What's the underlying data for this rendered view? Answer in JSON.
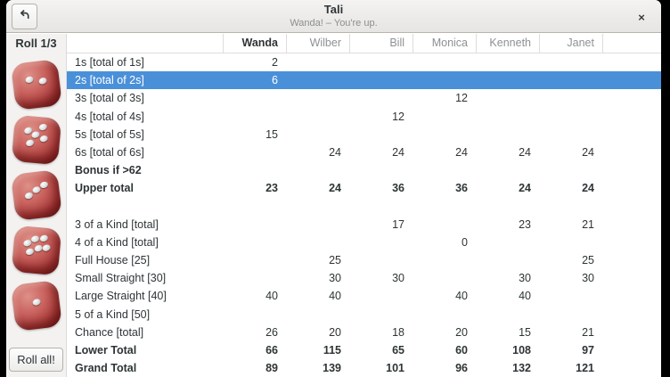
{
  "titlebar": {
    "title": "Tali",
    "subtitle": "Wanda! – You're up.",
    "back_icon": "back-arrow",
    "close_icon": "×"
  },
  "sidebar": {
    "roll_counter": "Roll 1/3",
    "dice_values": [
      2,
      5,
      3,
      6,
      1
    ],
    "roll_button_label": "Roll all!"
  },
  "score_table": {
    "players": [
      {
        "name": "Wanda",
        "current": true
      },
      {
        "name": "Wilber",
        "current": false
      },
      {
        "name": "Bill",
        "current": false
      },
      {
        "name": "Monica",
        "current": false
      },
      {
        "name": "Kenneth",
        "current": false
      },
      {
        "name": "Janet",
        "current": false
      }
    ],
    "rows": [
      {
        "label": "1s [total of 1s]",
        "values": [
          "2",
          "",
          "",
          "",
          "",
          ""
        ],
        "bold": false,
        "selected": false
      },
      {
        "label": "2s [total of 2s]",
        "values": [
          "6",
          "",
          "",
          "",
          "",
          ""
        ],
        "bold": false,
        "selected": true
      },
      {
        "label": "3s [total of 3s]",
        "values": [
          "",
          "",
          "",
          "12",
          "",
          ""
        ],
        "bold": false,
        "selected": false
      },
      {
        "label": "4s [total of 4s]",
        "values": [
          "",
          "",
          "12",
          "",
          "",
          ""
        ],
        "bold": false,
        "selected": false
      },
      {
        "label": "5s [total of 5s]",
        "values": [
          "15",
          "",
          "",
          "",
          "",
          ""
        ],
        "bold": false,
        "selected": false
      },
      {
        "label": "6s [total of 6s]",
        "values": [
          "",
          "24",
          "24",
          "24",
          "24",
          "24"
        ],
        "bold": false,
        "selected": false
      },
      {
        "label": "Bonus if >62",
        "values": [
          "",
          "",
          "",
          "",
          "",
          ""
        ],
        "bold": true,
        "selected": false
      },
      {
        "label": "Upper total",
        "values": [
          "23",
          "24",
          "36",
          "36",
          "24",
          "24"
        ],
        "bold": true,
        "selected": false
      },
      {
        "label": "",
        "values": [
          "",
          "",
          "",
          "",
          "",
          ""
        ],
        "bold": false,
        "selected": false
      },
      {
        "label": "3 of a Kind [total]",
        "values": [
          "",
          "",
          "17",
          "",
          "23",
          "21"
        ],
        "bold": false,
        "selected": false
      },
      {
        "label": "4 of a Kind [total]",
        "values": [
          "",
          "",
          "",
          "0",
          "",
          ""
        ],
        "bold": false,
        "selected": false
      },
      {
        "label": "Full House [25]",
        "values": [
          "",
          "25",
          "",
          "",
          "",
          "25"
        ],
        "bold": false,
        "selected": false
      },
      {
        "label": "Small Straight [30]",
        "values": [
          "",
          "30",
          "30",
          "",
          "30",
          "30"
        ],
        "bold": false,
        "selected": false
      },
      {
        "label": "Large Straight [40]",
        "values": [
          "40",
          "40",
          "",
          "40",
          "40",
          ""
        ],
        "bold": false,
        "selected": false
      },
      {
        "label": "5 of a Kind [50]",
        "values": [
          "",
          "",
          "",
          "",
          "",
          ""
        ],
        "bold": false,
        "selected": false
      },
      {
        "label": "Chance [total]",
        "values": [
          "26",
          "20",
          "18",
          "20",
          "15",
          "21"
        ],
        "bold": false,
        "selected": false
      },
      {
        "label": "Lower Total",
        "values": [
          "66",
          "115",
          "65",
          "60",
          "108",
          "97"
        ],
        "bold": true,
        "selected": false
      },
      {
        "label": "Grand Total",
        "values": [
          "89",
          "139",
          "101",
          "96",
          "132",
          "121"
        ],
        "bold": true,
        "selected": false
      }
    ]
  },
  "colors": {
    "selection_blue": "#4a90d9",
    "die_red": "#b8403f",
    "titlebar_bg": "#edebe9",
    "text_dark": "#2e3436",
    "text_gray": "#8e9192"
  }
}
